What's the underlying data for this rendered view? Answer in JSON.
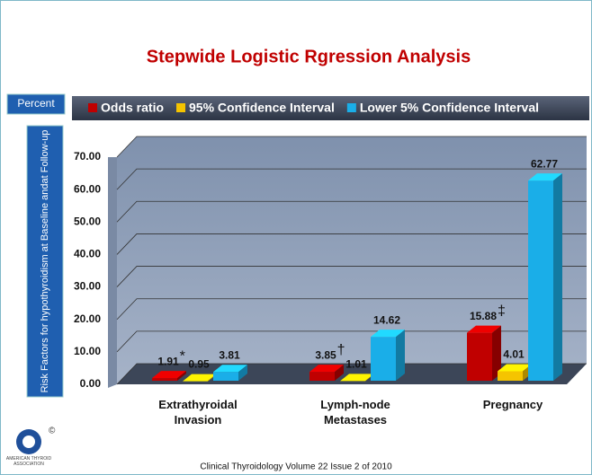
{
  "chart_data": {
    "type": "bar3d",
    "title": "Stepwide Logistic Rgression Analysis",
    "y_axis_title": "Percent",
    "side_label": "Risk Factors for hypothyroidism at Baseline andat Follow-up",
    "footer": "Clinical Thyroidology Volume 22 Issue 2 of 2010",
    "logo_text": "AMERICAN THYROID ASSOCIATION",
    "categories": [
      "Extrathyroidal Invasion",
      "Lymph-node Metastases",
      "Pregnancy"
    ],
    "series": [
      {
        "name": "Odds ratio",
        "color": "#c00000",
        "values": [
          1.91,
          3.85,
          15.88
        ],
        "annotations": [
          "*",
          "†",
          "‡"
        ]
      },
      {
        "name": "95% Confidence Interval",
        "color": "#f5c400",
        "values": [
          0.95,
          1.01,
          4.01
        ]
      },
      {
        "name": "Lower 5% Confidence Interval",
        "color": "#1aaee8",
        "values": [
          3.81,
          14.62,
          62.77
        ]
      }
    ],
    "ylim": [
      0,
      70
    ],
    "yticks": [
      {
        "value": 0,
        "label": "0.00"
      },
      {
        "value": 10,
        "label": "10.00"
      },
      {
        "value": 20,
        "label": "20.00"
      },
      {
        "value": 30,
        "label": "30.00"
      },
      {
        "value": 40,
        "label": "40.00"
      },
      {
        "value": 50,
        "label": "50.00"
      },
      {
        "value": 60,
        "label": "60.00"
      },
      {
        "value": 70,
        "label": "70.00"
      }
    ],
    "grid": true
  }
}
